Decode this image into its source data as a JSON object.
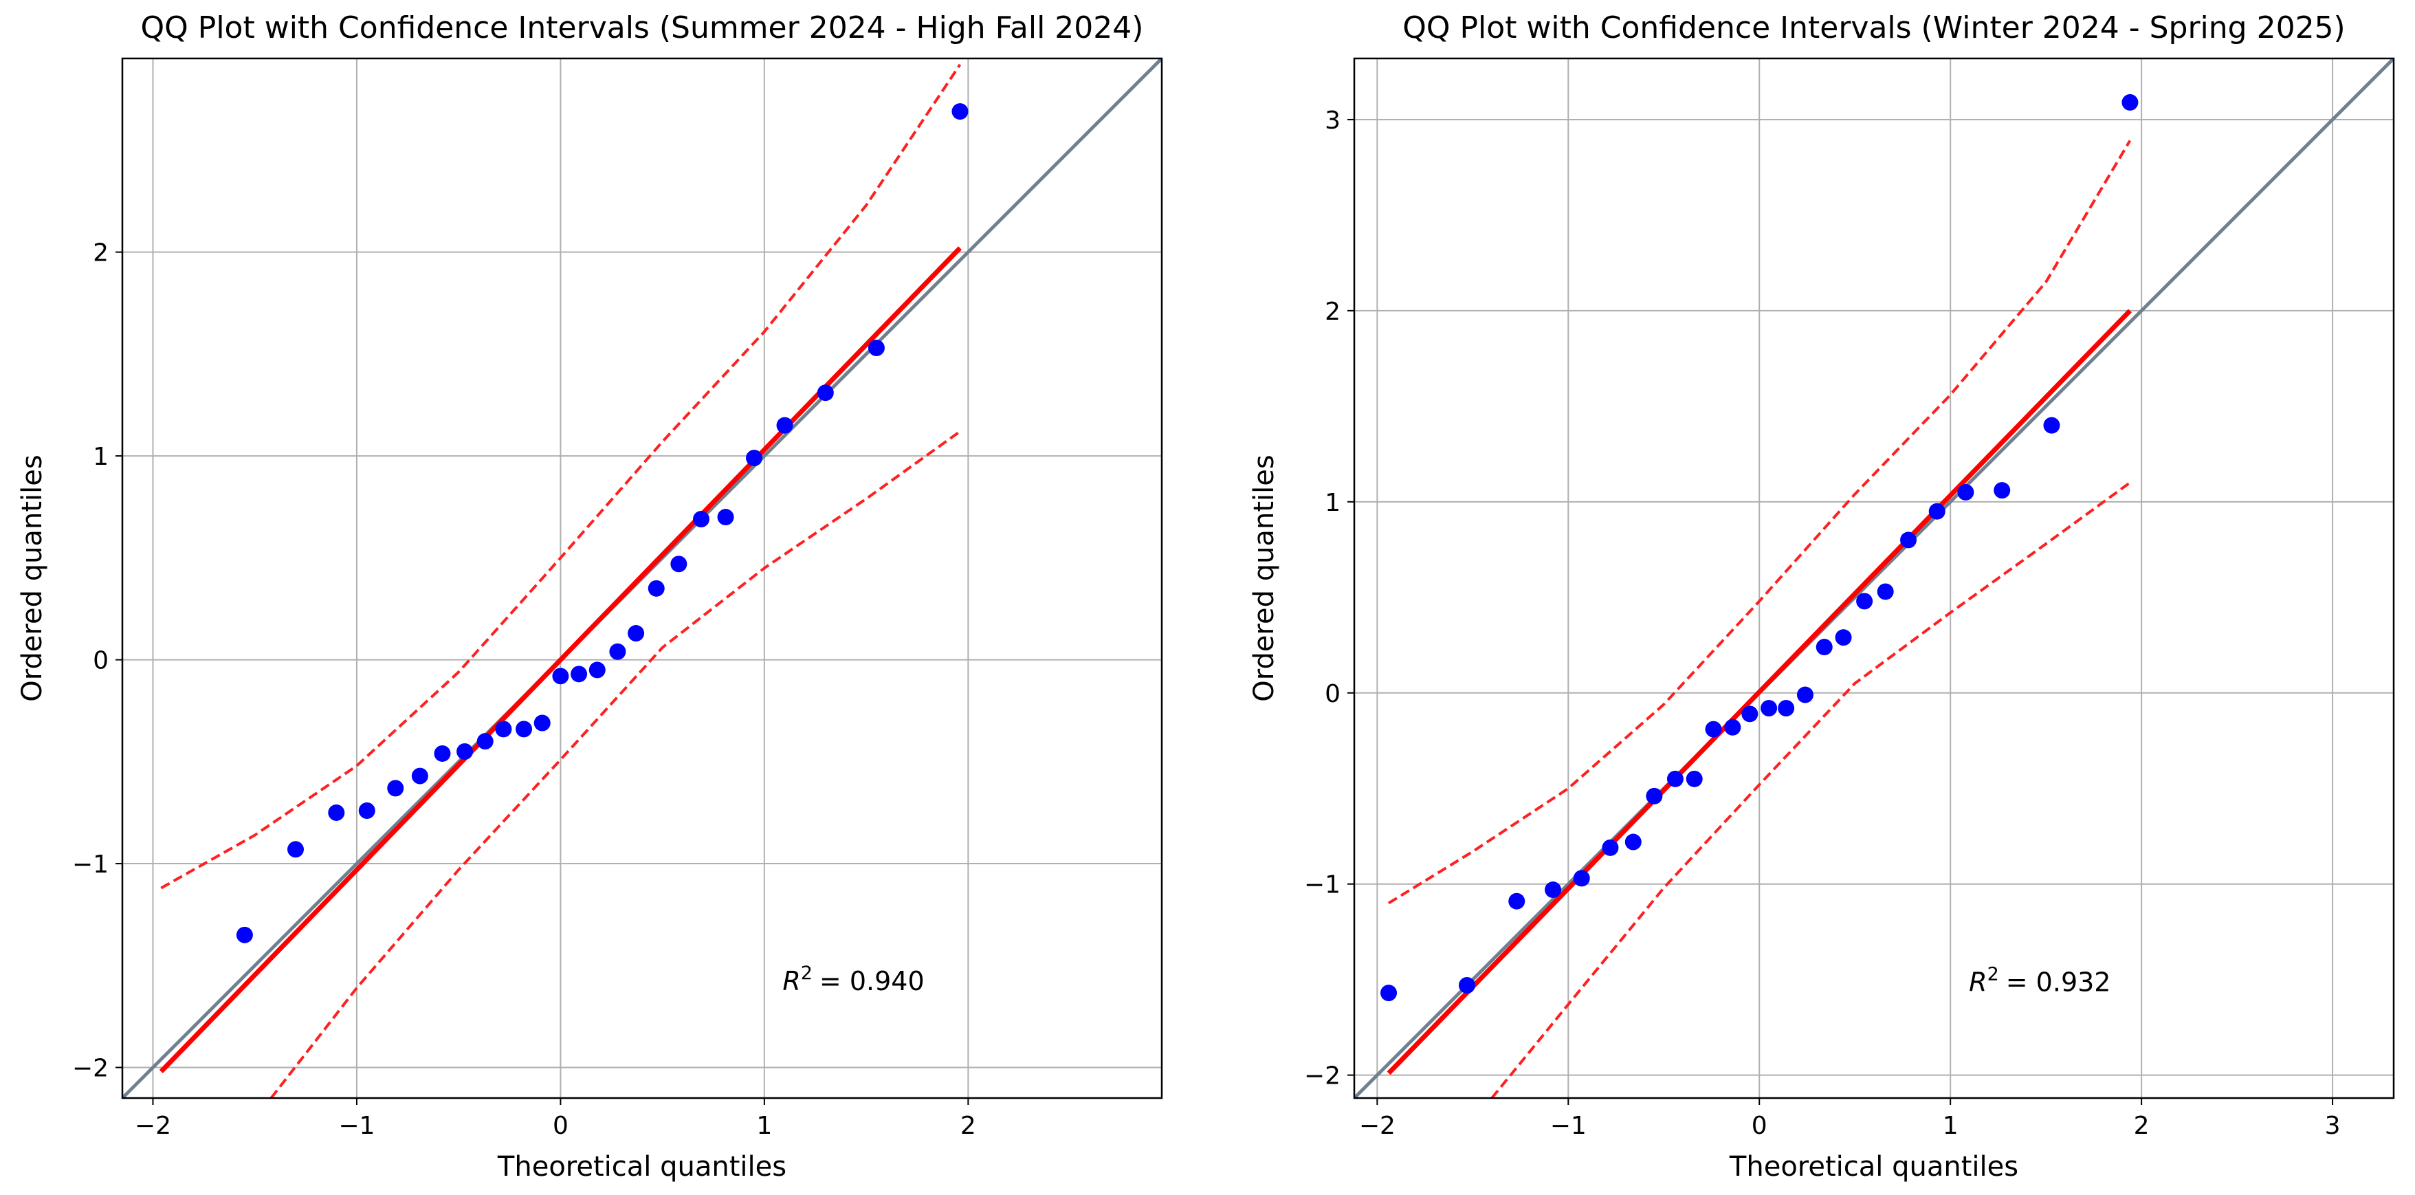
{
  "colors": {
    "points": "#0000ff",
    "fit_line": "#ff0000",
    "confidence_band": "#ff2020",
    "reference_line": "#708090",
    "grid": "#b0b0b0",
    "axes": "#000000"
  },
  "chart_data": [
    {
      "type": "scatter",
      "title": "QQ Plot with Confidence Intervals (Summer 2024 - High Fall 2024)",
      "xlabel": "Theoretical quantiles",
      "ylabel": "Ordered quantiles",
      "xlim": [
        -2.15,
        2.95
      ],
      "ylim": [
        -2.15,
        2.95
      ],
      "xticks": [
        -2,
        -1,
        0,
        1,
        2
      ],
      "xtick_labels": [
        "−2",
        "−1",
        "0",
        "1",
        "2"
      ],
      "yticks": [
        -2,
        -1,
        0,
        1,
        2
      ],
      "ytick_labels": [
        "−2",
        "−1",
        "0",
        "1",
        "2"
      ],
      "grid": true,
      "annotation": {
        "text": "= 0.940",
        "r2": 0.94,
        "x": 1.27,
        "y": -1.62
      },
      "points": {
        "x": [
          -1.55,
          -1.3,
          -1.1,
          -0.95,
          -0.81,
          -0.69,
          -0.58,
          -0.47,
          -0.37,
          -0.28,
          -0.18,
          -0.09,
          0.0,
          0.09,
          0.18,
          0.28,
          0.37,
          0.47,
          0.58,
          0.69,
          0.81,
          0.95,
          1.1,
          1.3,
          1.55,
          1.96
        ],
        "y": [
          -1.35,
          -0.93,
          -0.75,
          -0.74,
          -0.63,
          -0.57,
          -0.46,
          -0.45,
          -0.4,
          -0.34,
          -0.34,
          -0.31,
          -0.08,
          -0.07,
          -0.05,
          0.04,
          0.13,
          0.35,
          0.47,
          0.69,
          0.7,
          0.99,
          1.15,
          1.31,
          1.53,
          2.69
        ]
      },
      "reference_line": {
        "x": [
          -2.15,
          2.95
        ],
        "y": [
          -2.15,
          2.95
        ]
      },
      "fit_line": {
        "x": [
          -1.96,
          1.96
        ],
        "y": [
          -2.02,
          2.02
        ]
      },
      "upper_band": {
        "x": [
          -1.96,
          -1.5,
          -1.0,
          -0.5,
          0.0,
          0.5,
          1.0,
          1.5,
          1.96
        ],
        "y": [
          -1.12,
          -0.86,
          -0.52,
          -0.06,
          0.5,
          1.07,
          1.61,
          2.23,
          2.92
        ]
      },
      "lower_band": {
        "x": [
          -1.42,
          -1.0,
          -0.5,
          0.0,
          0.5,
          1.0,
          1.5,
          1.96
        ],
        "y": [
          -2.15,
          -1.61,
          -1.03,
          -0.49,
          0.06,
          0.45,
          0.79,
          1.12
        ]
      }
    },
    {
      "type": "scatter",
      "title": "QQ Plot with Confidence Intervals (Winter 2024 - Spring 2025)",
      "xlabel": "Theoretical quantiles",
      "ylabel": "Ordered quantiles",
      "xlim": [
        -2.12,
        3.32
      ],
      "ylim": [
        -2.12,
        3.32
      ],
      "xticks": [
        -2,
        -1,
        0,
        1,
        2,
        3
      ],
      "xtick_labels": [
        "−2",
        "−1",
        "0",
        "1",
        "2",
        "3"
      ],
      "yticks": [
        -2,
        -1,
        0,
        1,
        2,
        3
      ],
      "ytick_labels": [
        "−2",
        "−1",
        "0",
        "1",
        "2",
        "3"
      ],
      "grid": true,
      "annotation": {
        "text": "= 0.932",
        "r2": 0.932,
        "x": 1.29,
        "y": -1.56
      },
      "points": {
        "x": [
          -1.94,
          -1.53,
          -1.27,
          -1.08,
          -0.93,
          -0.78,
          -0.66,
          -0.55,
          -0.44,
          -0.34,
          -0.24,
          -0.14,
          -0.05,
          0.05,
          0.14,
          0.24,
          0.34,
          0.44,
          0.55,
          0.66,
          0.78,
          0.93,
          1.08,
          1.27,
          1.53,
          1.94
        ],
        "y": [
          -1.57,
          -1.53,
          -1.09,
          -1.03,
          -0.97,
          -0.81,
          -0.78,
          -0.54,
          -0.45,
          -0.45,
          -0.19,
          -0.18,
          -0.11,
          -0.08,
          -0.08,
          -0.01,
          0.24,
          0.29,
          0.48,
          0.53,
          0.8,
          0.95,
          1.05,
          1.06,
          1.4,
          3.09
        ]
      },
      "reference_line": {
        "x": [
          -2.12,
          3.32
        ],
        "y": [
          -2.12,
          3.32
        ]
      },
      "fit_line": {
        "x": [
          -1.94,
          1.94
        ],
        "y": [
          -1.99,
          2.0
        ]
      },
      "upper_band": {
        "x": [
          -1.94,
          -1.5,
          -1.0,
          -0.5,
          0.0,
          0.5,
          1.0,
          1.5,
          1.94
        ],
        "y": [
          -1.1,
          -0.83,
          -0.5,
          -0.06,
          0.48,
          1.04,
          1.56,
          2.15,
          2.89
        ]
      },
      "lower_band": {
        "x": [
          -1.4,
          -1.0,
          -0.5,
          0.0,
          0.5,
          1.0,
          1.5,
          1.94
        ],
        "y": [
          -2.12,
          -1.63,
          -1.02,
          -0.48,
          0.05,
          0.42,
          0.78,
          1.1
        ]
      }
    }
  ]
}
